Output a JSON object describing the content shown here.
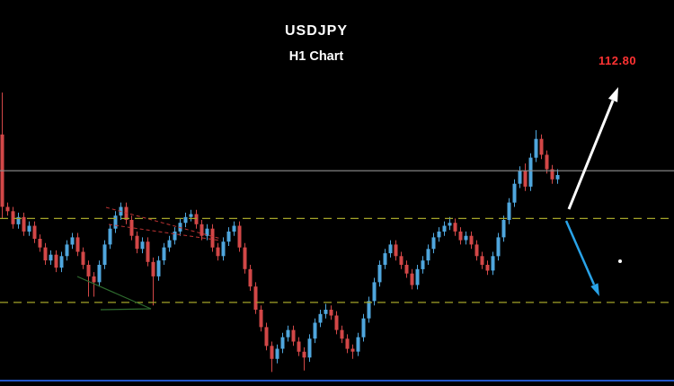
{
  "header": {
    "symbol": "USDJPY",
    "timeframe_label": "H1 Chart"
  },
  "annotations": {
    "target_price_label": "112.80",
    "bull_arrow_direction": "up",
    "bear_arrow_direction": "down"
  },
  "colors": {
    "background": "#000000",
    "bull_candle": "#4fa6dd",
    "bear_candle": "#d24747",
    "resistance_line": "#a3a329",
    "support_line": "#a3a329",
    "range_top_line": "#8f8f8f",
    "target_label": "#ff3333",
    "bull_arrow": "#ffffff",
    "bear_arrow": "#29a3e8",
    "trendline_red": "#c03434",
    "trendline_green": "#2e6b2e",
    "bottom_border": "#2456c8"
  },
  "chart_data": {
    "type": "candlestick",
    "title": "USDJPY H1 Chart",
    "symbol": "USDJPY",
    "timeframe": "H1",
    "xlabel": "",
    "ylabel": "",
    "ylim": [
      110.75,
      112.85
    ],
    "grid": false,
    "legend": false,
    "target": {
      "price": 112.8,
      "label": "112.80"
    },
    "levels": [
      {
        "name": "range-top",
        "price": 112.21,
        "style": "solid",
        "color_key": "range_top_line"
      },
      {
        "name": "resistance",
        "price": 111.88,
        "style": "dashed",
        "color_key": "resistance_line"
      },
      {
        "name": "support",
        "price": 111.3,
        "style": "dashed",
        "color_key": "support_line"
      }
    ],
    "candles": [
      [
        112.46,
        112.75,
        111.88,
        111.96
      ],
      [
        111.96,
        111.99,
        111.9,
        111.93
      ],
      [
        111.93,
        111.96,
        111.81,
        111.84
      ],
      [
        111.84,
        111.92,
        111.81,
        111.89
      ],
      [
        111.89,
        111.92,
        111.76,
        111.79
      ],
      [
        111.79,
        111.86,
        111.76,
        111.83
      ],
      [
        111.83,
        111.86,
        111.71,
        111.74
      ],
      [
        111.74,
        111.77,
        111.65,
        111.68
      ],
      [
        111.68,
        111.71,
        111.56,
        111.59
      ],
      [
        111.59,
        111.66,
        111.56,
        111.63
      ],
      [
        111.63,
        111.66,
        111.51,
        111.54
      ],
      [
        111.54,
        111.65,
        111.51,
        111.62
      ],
      [
        111.62,
        111.73,
        111.59,
        111.7
      ],
      [
        111.7,
        111.78,
        111.67,
        111.75
      ],
      [
        111.75,
        111.78,
        111.62,
        111.65
      ],
      [
        111.65,
        111.68,
        111.53,
        111.56
      ],
      [
        111.56,
        111.59,
        111.34,
        111.48
      ],
      [
        111.48,
        111.51,
        111.34,
        111.44
      ],
      [
        111.44,
        111.59,
        111.41,
        111.56
      ],
      [
        111.56,
        111.73,
        111.53,
        111.7
      ],
      [
        111.7,
        111.84,
        111.67,
        111.81
      ],
      [
        111.81,
        111.93,
        111.78,
        111.9
      ],
      [
        111.9,
        111.99,
        111.87,
        111.96
      ],
      [
        111.96,
        111.99,
        111.84,
        111.87
      ],
      [
        111.87,
        111.9,
        111.73,
        111.76
      ],
      [
        111.76,
        111.79,
        111.64,
        111.67
      ],
      [
        111.67,
        111.75,
        111.64,
        111.72
      ],
      [
        111.72,
        111.75,
        111.55,
        111.58
      ],
      [
        111.58,
        111.61,
        111.28,
        111.48
      ],
      [
        111.48,
        111.62,
        111.45,
        111.59
      ],
      [
        111.59,
        111.71,
        111.56,
        111.68
      ],
      [
        111.68,
        111.76,
        111.65,
        111.73
      ],
      [
        111.73,
        111.82,
        111.7,
        111.79
      ],
      [
        111.79,
        111.88,
        111.76,
        111.85
      ],
      [
        111.85,
        111.92,
        111.82,
        111.89
      ],
      [
        111.89,
        111.94,
        111.86,
        111.91
      ],
      [
        111.91,
        111.94,
        111.81,
        111.84
      ],
      [
        111.84,
        111.87,
        111.73,
        111.76
      ],
      [
        111.76,
        111.84,
        111.73,
        111.81
      ],
      [
        111.81,
        111.84,
        111.65,
        111.68
      ],
      [
        111.68,
        111.71,
        111.59,
        111.62
      ],
      [
        111.62,
        111.75,
        111.59,
        111.72
      ],
      [
        111.72,
        111.82,
        111.69,
        111.79
      ],
      [
        111.79,
        111.86,
        111.76,
        111.83
      ],
      [
        111.83,
        111.86,
        111.65,
        111.68
      ],
      [
        111.68,
        111.71,
        111.5,
        111.53
      ],
      [
        111.53,
        111.56,
        111.38,
        111.41
      ],
      [
        111.41,
        111.44,
        111.22,
        111.25
      ],
      [
        111.25,
        111.28,
        111.1,
        111.13
      ],
      [
        111.13,
        111.16,
        110.97,
        111.0
      ],
      [
        111.0,
        111.03,
        110.82,
        110.91
      ],
      [
        110.91,
        111.01,
        110.88,
        110.98
      ],
      [
        110.98,
        111.09,
        110.95,
        111.06
      ],
      [
        111.06,
        111.14,
        111.03,
        111.11
      ],
      [
        111.11,
        111.14,
        111.0,
        111.03
      ],
      [
        111.03,
        111.06,
        110.93,
        110.96
      ],
      [
        110.96,
        110.99,
        110.83,
        110.92
      ],
      [
        110.92,
        111.08,
        110.89,
        111.05
      ],
      [
        111.05,
        111.19,
        111.02,
        111.16
      ],
      [
        111.16,
        111.25,
        111.13,
        111.22
      ],
      [
        111.22,
        111.29,
        111.19,
        111.25
      ],
      [
        111.25,
        111.28,
        111.18,
        111.21
      ],
      [
        111.21,
        111.24,
        111.08,
        111.11
      ],
      [
        111.11,
        111.14,
        111.02,
        111.05
      ],
      [
        111.05,
        111.08,
        110.95,
        110.98
      ],
      [
        110.98,
        111.01,
        110.91,
        110.96
      ],
      [
        110.96,
        111.09,
        110.93,
        111.06
      ],
      [
        111.06,
        111.22,
        111.03,
        111.19
      ],
      [
        111.19,
        111.34,
        111.16,
        111.31
      ],
      [
        111.31,
        111.47,
        111.28,
        111.44
      ],
      [
        111.44,
        111.59,
        111.41,
        111.56
      ],
      [
        111.56,
        111.67,
        111.53,
        111.64
      ],
      [
        111.64,
        111.73,
        111.61,
        111.7
      ],
      [
        111.7,
        111.73,
        111.59,
        111.62
      ],
      [
        111.62,
        111.65,
        111.53,
        111.56
      ],
      [
        111.56,
        111.59,
        111.47,
        111.5
      ],
      [
        111.5,
        111.53,
        111.39,
        111.42
      ],
      [
        111.42,
        111.56,
        111.39,
        111.53
      ],
      [
        111.53,
        111.62,
        111.5,
        111.59
      ],
      [
        111.59,
        111.7,
        111.56,
        111.67
      ],
      [
        111.67,
        111.78,
        111.64,
        111.75
      ],
      [
        111.75,
        111.82,
        111.72,
        111.79
      ],
      [
        111.79,
        111.86,
        111.76,
        111.83
      ],
      [
        111.83,
        111.89,
        111.8,
        111.85
      ],
      [
        111.85,
        111.88,
        111.76,
        111.79
      ],
      [
        111.79,
        111.82,
        111.7,
        111.73
      ],
      [
        111.73,
        111.79,
        111.7,
        111.76
      ],
      [
        111.76,
        111.79,
        111.67,
        111.7
      ],
      [
        111.7,
        111.73,
        111.59,
        111.62
      ],
      [
        111.62,
        111.65,
        111.53,
        111.56
      ],
      [
        111.56,
        111.59,
        111.49,
        111.52
      ],
      [
        111.52,
        111.65,
        111.49,
        111.62
      ],
      [
        111.62,
        111.78,
        111.59,
        111.75
      ],
      [
        111.75,
        111.9,
        111.72,
        111.87
      ],
      [
        111.87,
        112.02,
        111.84,
        111.99
      ],
      [
        111.99,
        112.15,
        111.96,
        112.12
      ],
      [
        112.12,
        112.24,
        112.09,
        112.21
      ],
      [
        112.21,
        112.26,
        112.07,
        112.1
      ],
      [
        112.1,
        112.33,
        112.07,
        112.3
      ],
      [
        112.3,
        112.49,
        112.27,
        112.43
      ],
      [
        112.43,
        112.46,
        112.29,
        112.32
      ],
      [
        112.32,
        112.35,
        112.19,
        112.22
      ],
      [
        112.22,
        112.25,
        112.12,
        112.15
      ],
      [
        112.15,
        112.22,
        112.12,
        112.18
      ]
    ]
  }
}
